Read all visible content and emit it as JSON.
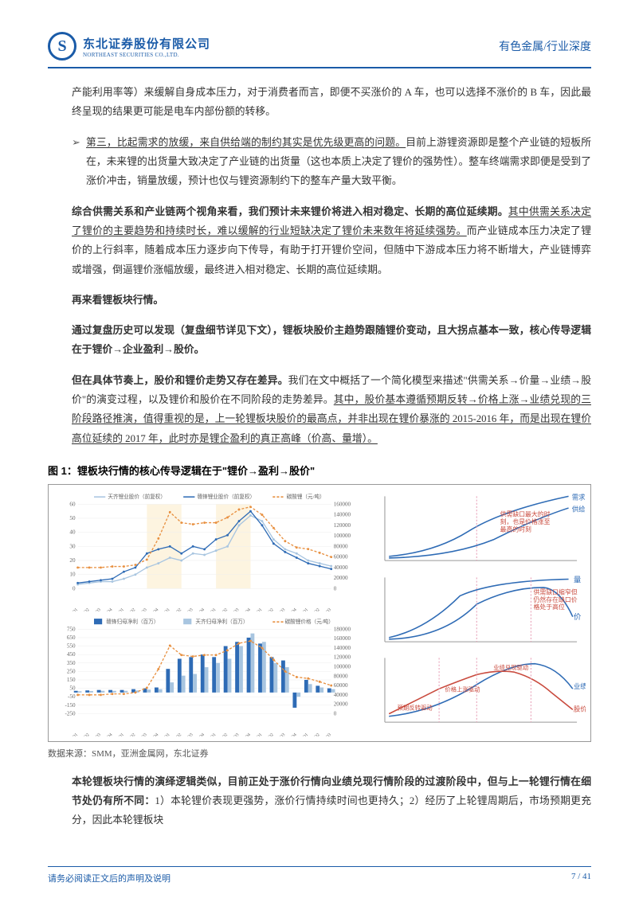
{
  "header": {
    "company_cn": "东北证券股份有限公司",
    "company_en": "NORTHEAST SECURITIES CO.,LTD.",
    "right": "有色金属/行业深度"
  },
  "para1": "产能利用率等）来缓解自身成本压力，对于消费者而言，即便不买涨价的 A 车，也可以选择不涨价的 B 车，因此最终呈现的结果更可能是电车内部份额的转移。",
  "bullet3_u": "第三，比起需求的放缓，来自供给端的制约其实是优先级更高的问题。",
  "bullet3_rest": "目前上游锂资源即是整个产业链的短板所在，未来锂的出货量大致决定了产业链的出货量（这也本质上决定了锂价的强势性）。整车终端需求即便是受到了涨价冲击，销量放缓，预计也仅与锂资源制约下的整车产量大致平衡。",
  "para2_bold": "综合供需关系和产业链两个视角来看，我们预计未来锂价将进入相对稳定、长期的高位延续期。",
  "para2_u": "其中供需关系决定了锂价的主要趋势和持续时长，难以缓解的行业短缺决定了锂价未来数年将延续强势。",
  "para2_rest": "而产业链成本压力决定了锂价的上行斜率，随着成本压力逐步向下传导，有助于打开锂价空间，但随中下游成本压力将不断增大，产业链博弈或增强，倒逼锂价涨幅放缓，最终进入相对稳定、长期的高位延续期。",
  "para3": "再来看锂板块行情。",
  "para4": "通过复盘历史可以发现（复盘细节详见下文），锂板块股价主趋势跟随锂价变动，且大拐点基本一致，核心传导逻辑在于锂价→企业盈利→股价。",
  "para5_bold": "但在具体节奏上，股价和锂价走势又存在差异。",
  "para5_rest": "我们在文中概括了一个简化模型来描述\"供需关系→价量→业绩→股价\"的演变过程，以及锂价和股价在不同阶段的走势差异。",
  "para5_u": "其中，股价基本遵循预期反转→价格上涨→业绩兑现的三阶段路径推演，值得重视的是，上一轮锂板块股价的最高点，并非出现在锂价暴涨的 2015-2016 年，而是出现在锂价高位延续的 2017 年，此时亦是锂企盈利的真正高峰（价高、量增）。",
  "figure": {
    "title": "图 1：锂板块行情的核心传导逻辑在于\"锂价→盈利→股价\"",
    "source": "数据来源：SMM，亚洲金属网，东北证券",
    "chart1": {
      "legend": [
        "天齐锂业股价（前复权）",
        "赣锋锂业股价（前复权）",
        "碳酸锂（元/吨）"
      ],
      "left_axis": [
        0,
        10,
        20,
        30,
        40,
        50,
        60
      ],
      "right_axis": [
        0,
        20000,
        40000,
        60000,
        80000,
        100000,
        120000,
        140000,
        160000
      ],
      "x_labels": [
        "2014Q1",
        "2014Q2",
        "2014Q3",
        "2014Q4",
        "2015Q1",
        "2015Q2",
        "2015Q3",
        "2015Q4",
        "2016Q1",
        "2016Q2",
        "2016Q3",
        "2016Q4",
        "2017Q1",
        "2017Q2",
        "2017Q3",
        "2017Q4",
        "2018Q1",
        "2018Q2",
        "2018Q3",
        "2018Q4",
        "2019Q1",
        "2019Q2",
        "2019Q3"
      ],
      "series1": [
        3,
        4,
        5,
        5,
        7,
        10,
        15,
        18,
        22,
        20,
        25,
        24,
        27,
        30,
        45,
        52,
        48,
        35,
        28,
        25,
        20,
        18,
        16
      ],
      "series2": [
        4,
        5,
        6,
        7,
        12,
        15,
        25,
        28,
        30,
        25,
        30,
        28,
        35,
        38,
        48,
        55,
        45,
        32,
        26,
        22,
        18,
        16,
        14
      ],
      "series3": [
        40000,
        40000,
        40000,
        42000,
        42000,
        45000,
        55000,
        95000,
        145000,
        125000,
        122000,
        125000,
        125000,
        135000,
        150000,
        155000,
        140000,
        115000,
        90000,
        78000,
        75000,
        68000,
        60000
      ],
      "colors": {
        "s1": "#a8c5e0",
        "s2": "#2e6bb5",
        "s3": "#e89040",
        "hl": "#fdf4e0"
      }
    },
    "chart2": {
      "legend": [
        "赣锋归母净利（百万）",
        "天齐归母净利（百万）",
        "碳酸锂价格（元/吨）"
      ],
      "left_axis": [
        -250,
        -150,
        -50,
        50,
        150,
        250,
        350,
        450,
        550,
        650,
        750
      ],
      "right_axis": [
        0,
        20000,
        40000,
        60000,
        80000,
        100000,
        120000,
        140000,
        160000,
        180000
      ],
      "x_labels": [
        "2014Q1",
        "2014Q2",
        "2014Q3",
        "2014Q4",
        "2015Q1",
        "2015Q2",
        "2015Q3",
        "2015Q4",
        "2016Q1",
        "2016Q2",
        "2016Q3",
        "2016Q4",
        "2017Q1",
        "2017Q2",
        "2017Q3",
        "2017Q4",
        "2018Q1",
        "2018Q2",
        "2018Q3",
        "2018Q4",
        "2019Q1",
        "2019Q2",
        "2019Q3"
      ],
      "bars_a": [
        20,
        25,
        30,
        30,
        30,
        40,
        50,
        60,
        280,
        400,
        420,
        450,
        420,
        550,
        600,
        650,
        580,
        420,
        380,
        -180,
        150,
        80,
        50
      ],
      "bars_b": [
        15,
        18,
        20,
        20,
        20,
        25,
        35,
        40,
        120,
        200,
        220,
        300,
        350,
        400,
        550,
        700,
        600,
        350,
        300,
        -50,
        100,
        60,
        40
      ],
      "line": [
        40000,
        40000,
        40000,
        42000,
        42000,
        45000,
        55000,
        95000,
        145000,
        125000,
        122000,
        125000,
        125000,
        135000,
        150000,
        155000,
        140000,
        115000,
        90000,
        78000,
        75000,
        68000,
        60000
      ],
      "colors": {
        "a": "#2e6bb5",
        "b": "#a8c5e0",
        "line": "#e89040"
      }
    },
    "mini": {
      "c1_labels": {
        "demand": "需求曲线",
        "supply": "供给曲线",
        "note": "供需缺口最大的时刻，也是价格涨至最高的时刻"
      },
      "c2_labels": {
        "qty": "量",
        "price": "价",
        "note": "供需缺口缩窄但仍然存在缺口价格处于高位"
      },
      "c3_labels": {
        "perf": "业绩",
        "stock": "股价",
        "n1": "预期反转驱动",
        "n2": "价格上涨驱动",
        "n3": "业绩兑现驱动"
      },
      "colors": {
        "blue": "#2e6bb5",
        "red": "#c94a3d",
        "dashpink": "#e8a0b8"
      }
    }
  },
  "para6_bold": "本轮锂板块行情的演绎逻辑类似，目前正处于涨价行情向业绩兑现行情阶段的过渡阶段中，但与上一轮锂行情在细节处仍有所不同：",
  "para6_rest": "1）本轮锂价表现更强势，涨价行情持续时间也更持久；2）经历了上轮锂周期后，市场预期更充分，因此本轮锂板块",
  "footer": {
    "left": "请务必阅读正文后的声明及说明",
    "right": "7 / 41"
  }
}
